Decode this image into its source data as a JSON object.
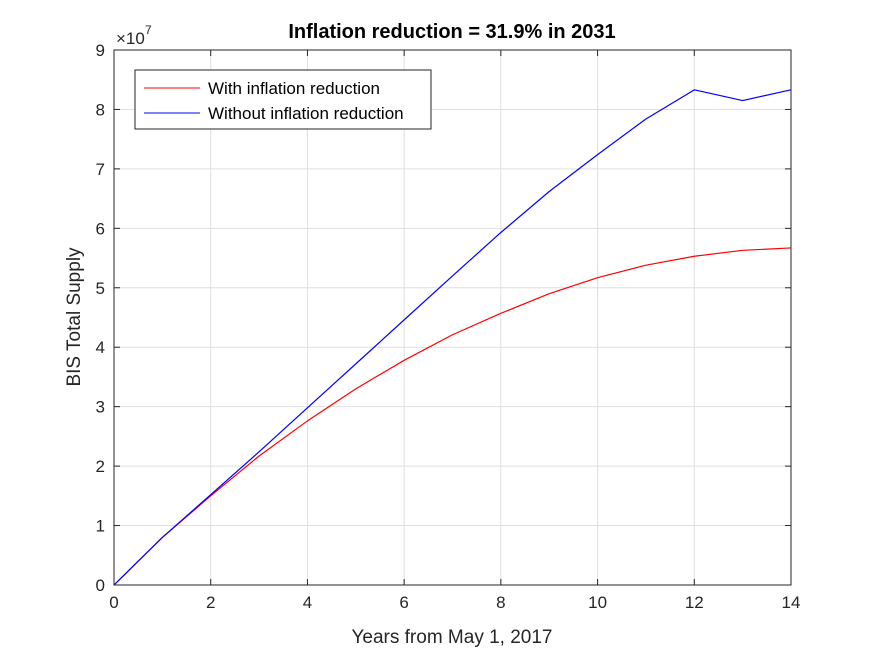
{
  "chart_data": {
    "type": "line",
    "title": "Inflation reduction = 31.9% in 2031",
    "xlabel": "Years from May 1, 2017",
    "ylabel": "BIS Total Supply",
    "xlim": [
      0,
      14
    ],
    "ylim": [
      0,
      9
    ],
    "x_ticks": [
      0,
      2,
      4,
      6,
      8,
      10,
      12,
      14
    ],
    "y_ticks": [
      0,
      1,
      2,
      3,
      4,
      5,
      6,
      7,
      8,
      9
    ],
    "y_exponent_base": "×10",
    "y_exponent_power": "7",
    "grid": true,
    "legend_position": "top-left",
    "series": [
      {
        "name": "With inflation reduction",
        "color": "#ff0000",
        "x": [
          0,
          1,
          2,
          3,
          4,
          5,
          6,
          7,
          8,
          9,
          10,
          11,
          12,
          13,
          14
        ],
        "y": [
          0,
          0.8,
          1.5,
          2.17,
          2.76,
          3.3,
          3.78,
          4.21,
          4.57,
          4.9,
          5.17,
          5.38,
          5.53,
          5.63,
          5.67
        ]
      },
      {
        "name": "Without inflation reduction",
        "color": "#0000ff",
        "x": [
          0,
          1,
          2,
          3,
          4,
          5,
          6,
          7,
          8,
          9,
          10,
          11,
          12,
          13,
          14
        ],
        "y": [
          0,
          0.8,
          1.52,
          2.24,
          2.98,
          3.72,
          4.46,
          5.2,
          5.93,
          6.62,
          7.24,
          7.84,
          8.33,
          8.15,
          8.33
        ]
      }
    ]
  }
}
